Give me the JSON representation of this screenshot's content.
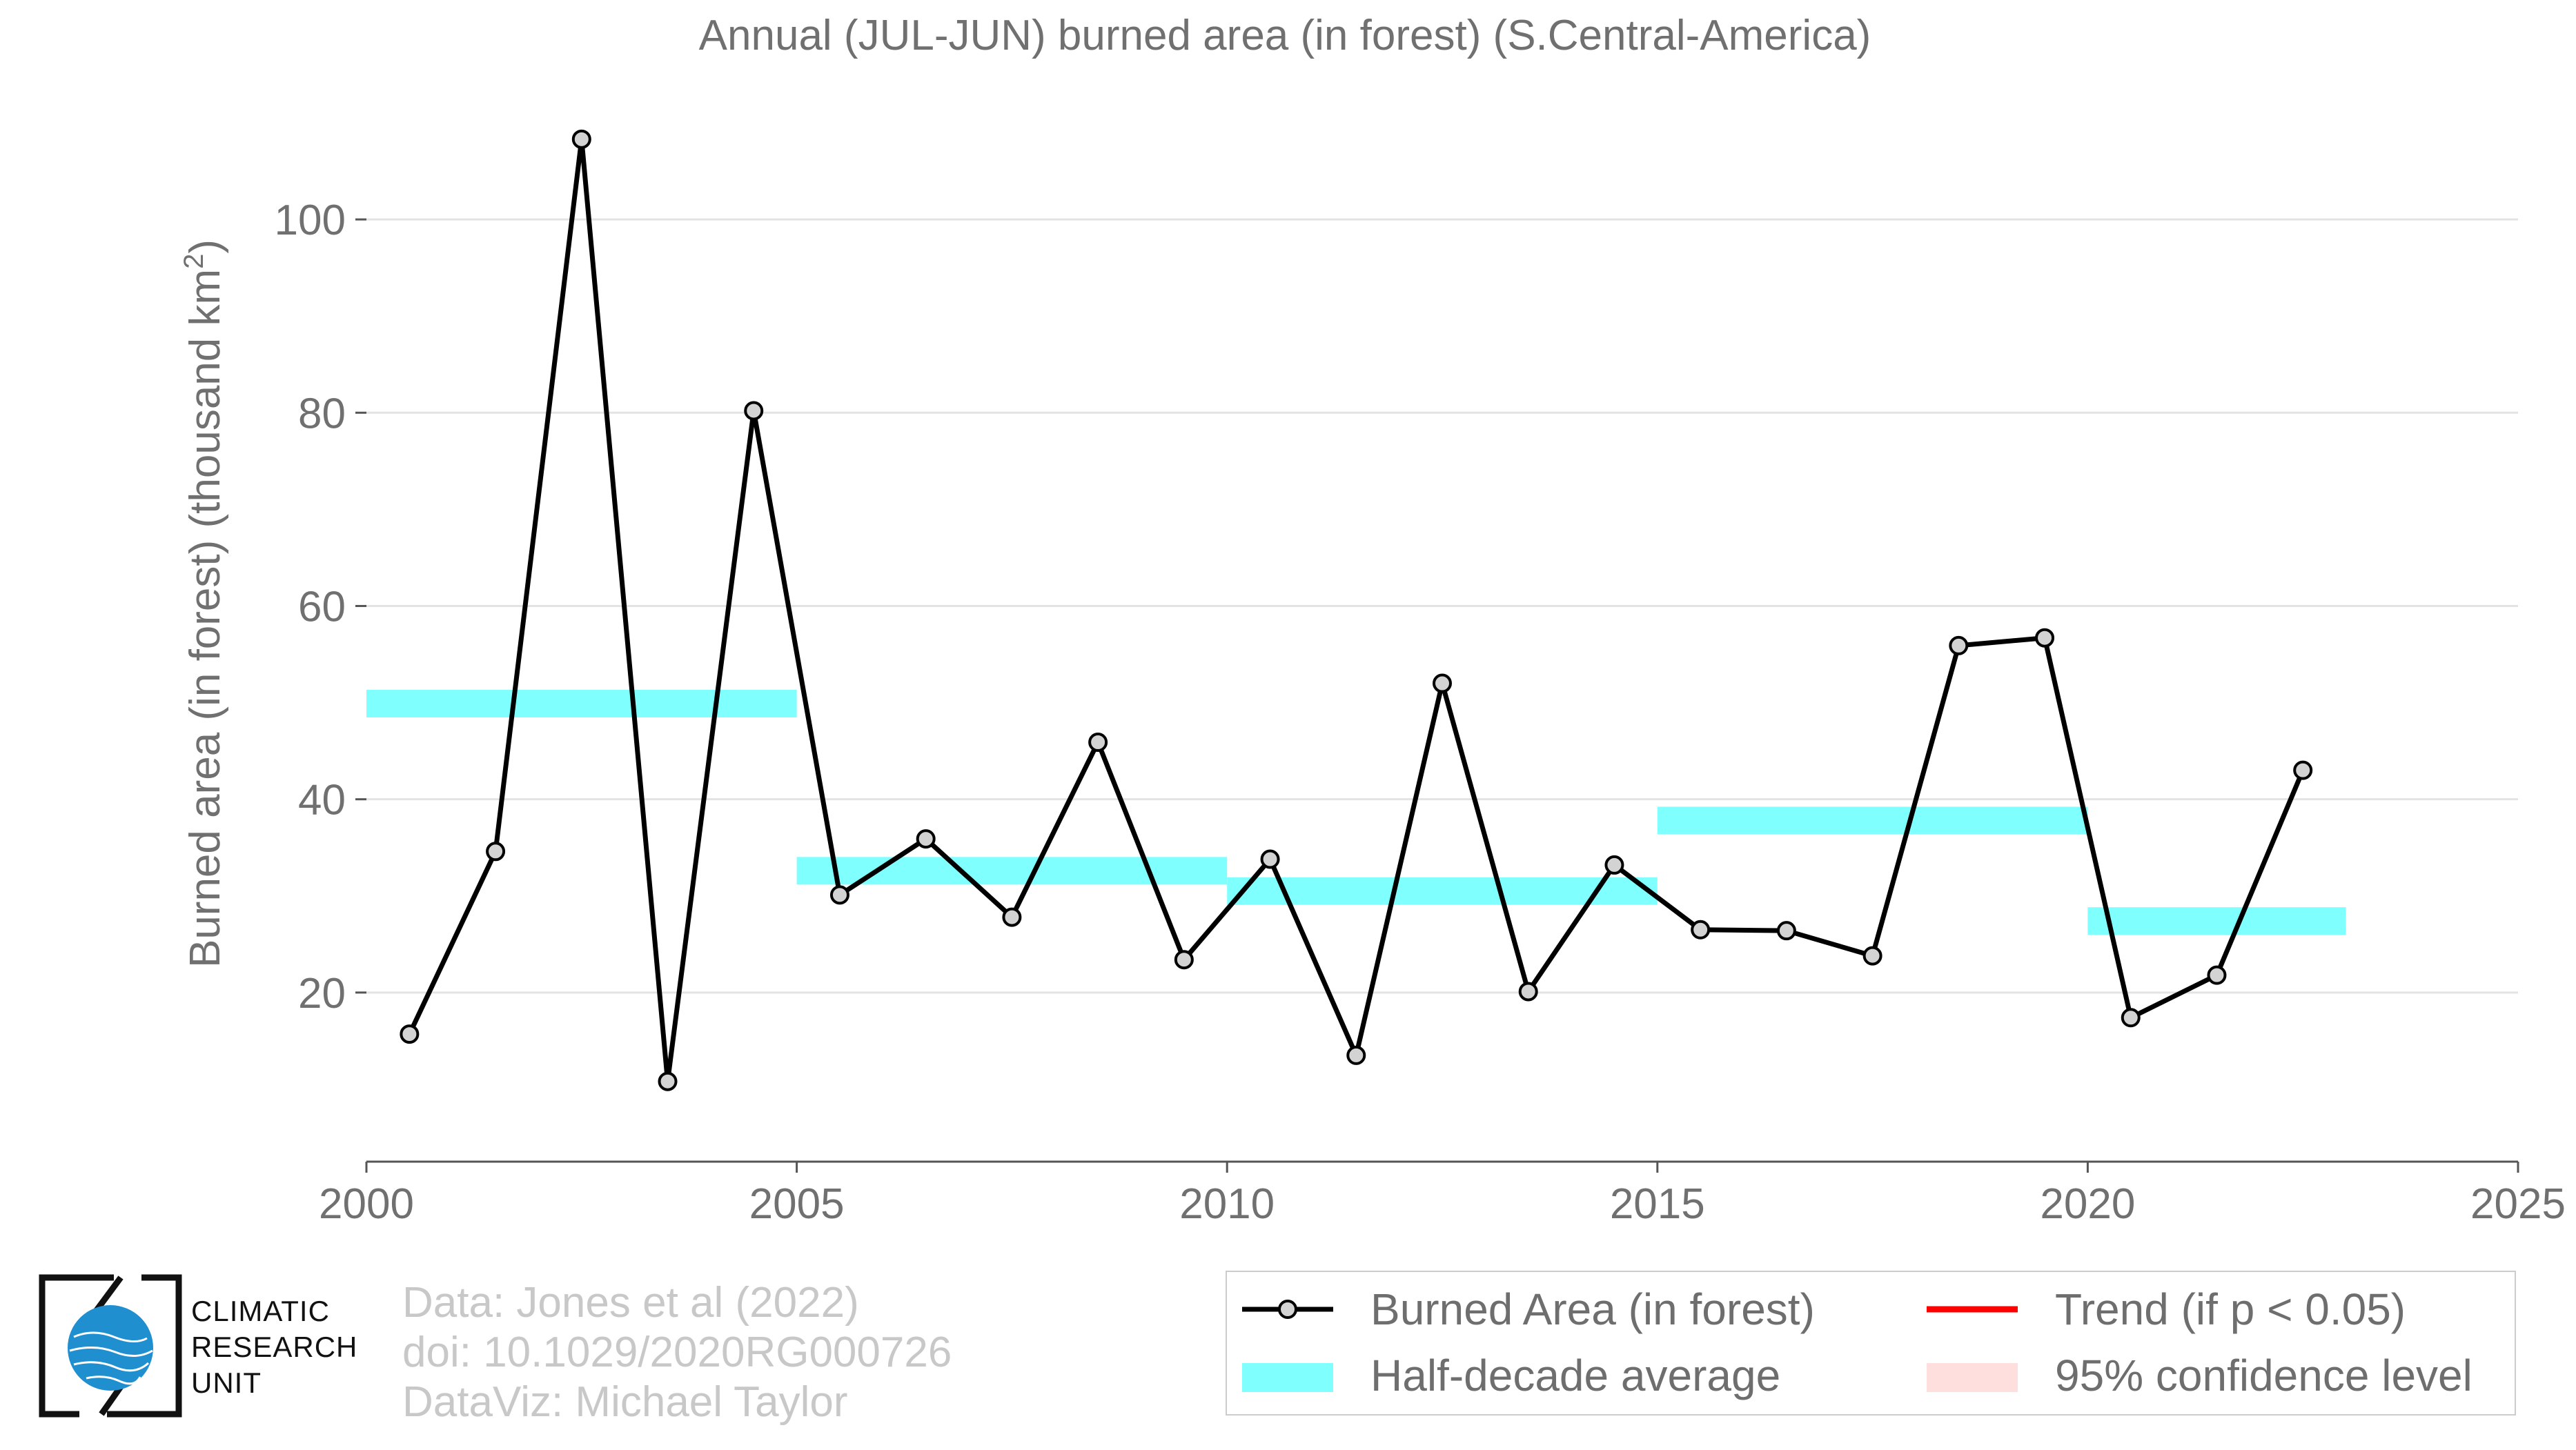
{
  "chart_data": {
    "type": "line",
    "title": "Annual (JUL-JUN) burned area (in forest) (S.Central-America)",
    "ylabel": "Burned area (in forest) (thousand km",
    "ylabel_sup": "2",
    "ylabel_close": ")",
    "xlabel": "",
    "xlim": [
      2000,
      2025
    ],
    "ylim": [
      2.5,
      112
    ],
    "x_ticks": [
      2000,
      2005,
      2010,
      2015,
      2020,
      2025
    ],
    "y_ticks": [
      20,
      40,
      60,
      80,
      100
    ],
    "grid": "horizontal",
    "series": [
      {
        "name": "Burned Area (in forest)",
        "color": "#000000",
        "marker_fill": "#d3d3d3",
        "x": [
          2000.5,
          2001.5,
          2002.5,
          2003.5,
          2004.5,
          2005.5,
          2006.5,
          2007.5,
          2008.5,
          2009.5,
          2010.5,
          2011.5,
          2012.5,
          2013.5,
          2014.5,
          2015.5,
          2016.5,
          2017.5,
          2018.5,
          2019.5,
          2020.5,
          2021.5,
          2022.5
        ],
        "y": [
          15.7,
          34.6,
          108.3,
          10.8,
          80.2,
          30.1,
          35.9,
          27.8,
          45.9,
          23.4,
          33.8,
          13.5,
          52.0,
          20.1,
          33.2,
          26.5,
          26.4,
          23.8,
          55.9,
          56.7,
          17.4,
          21.8,
          43.0
        ]
      }
    ],
    "half_decade_averages": {
      "name": "Half-decade average",
      "color": "#80ffff",
      "segments": [
        {
          "x0": 2000,
          "x1": 2005,
          "y": 49.9
        },
        {
          "x0": 2005,
          "x1": 2010,
          "y": 32.6
        },
        {
          "x0": 2010,
          "x1": 2015,
          "y": 30.5
        },
        {
          "x0": 2015,
          "x1": 2020,
          "y": 37.8
        },
        {
          "x0": 2020,
          "x1": 2023,
          "y": 27.4
        }
      ]
    },
    "legend": {
      "position": "bottom-right",
      "items": [
        {
          "label": "Burned Area (in forest)",
          "kind": "line-marker",
          "color": "#000000"
        },
        {
          "label": "Trend (if p < 0.05)",
          "kind": "line",
          "color": "#ff0000"
        },
        {
          "label": "Half-decade average",
          "kind": "band",
          "color": "#80ffff"
        },
        {
          "label": "95% confidence level",
          "kind": "band",
          "color": "#ffdede"
        }
      ]
    }
  },
  "credits": {
    "line1": "Data: Jones et al (2022)",
    "line2": "doi: 10.1029/2020RG000726",
    "line3": "DataViz: Michael Taylor"
  },
  "logo": {
    "line1": "CLIMATIC",
    "line2": "RESEARCH",
    "line3": "UNIT",
    "globe_color": "#1f8fd0"
  }
}
